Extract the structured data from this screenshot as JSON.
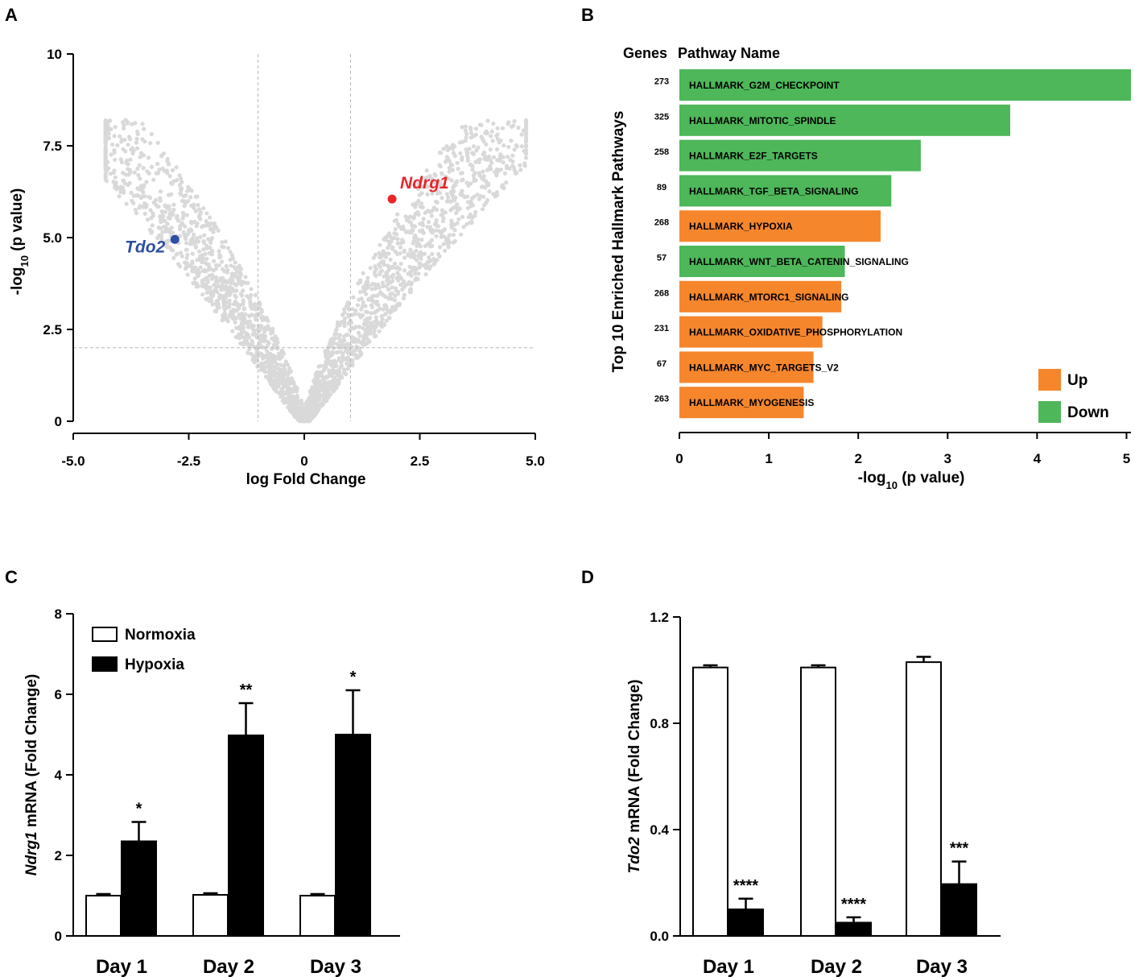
{
  "chart_data": [
    {
      "panel": "A",
      "type": "scatter",
      "title": "",
      "xlabel": "log Fold Change",
      "ylabel_parts": [
        "-log",
        "10",
        " (p value)"
      ],
      "xlim": [
        -5.0,
        5.0
      ],
      "ylim": [
        0,
        10
      ],
      "xticks": [
        "-5.0",
        "-2.5",
        "0",
        "2.5",
        "5.0"
      ],
      "yticks": [
        "0",
        "2.5",
        "5.0",
        "7.5",
        "10"
      ],
      "thresholds": {
        "x": [
          -1,
          1
        ],
        "y": 2
      },
      "background_color": "#d9d9d9",
      "highlights": [
        {
          "gene": "Tdo2",
          "x": -2.8,
          "y": 4.95,
          "color": "#2c4fa3"
        },
        {
          "gene": "Ndrg1",
          "x": 1.9,
          "y": 6.05,
          "color": "#e8262a"
        }
      ]
    },
    {
      "panel": "B",
      "type": "bar",
      "orientation": "horizontal",
      "header_genes": "Genes",
      "header_pathway": "Pathway Name",
      "ylabel": "Top 10 Enriched Hallmark Pathways",
      "xlabel_parts": [
        "-log",
        "10",
        " (p value)"
      ],
      "xlim": [
        0,
        5.05
      ],
      "xticks": [
        "0",
        "1",
        "2",
        "3",
        "4",
        "5"
      ],
      "colors": {
        "Up": "#f6862c",
        "Down": "#4db759"
      },
      "legend": [
        {
          "label": "Up",
          "key": "Up"
        },
        {
          "label": "Down",
          "key": "Down"
        }
      ],
      "bars": [
        {
          "genes": "273",
          "pathway": "HALLMARK_G2M_CHECKPOINT",
          "value": 5.05,
          "direction": "Down"
        },
        {
          "genes": "325",
          "pathway": "HALLMARK_MITOTIC_SPINDLE",
          "value": 3.7,
          "direction": "Down"
        },
        {
          "genes": "258",
          "pathway": "HALLMARK_E2F_TARGETS",
          "value": 2.7,
          "direction": "Down"
        },
        {
          "genes": "89",
          "pathway": "HALLMARK_TGF_BETA_SIGNALING",
          "value": 2.37,
          "direction": "Down"
        },
        {
          "genes": "268",
          "pathway": "HALLMARK_HYPOXIA",
          "value": 2.25,
          "direction": "Up"
        },
        {
          "genes": "57",
          "pathway": "HALLMARK_WNT_BETA_CATENIN_SIGNALING",
          "value": 1.85,
          "direction": "Down"
        },
        {
          "genes": "268",
          "pathway": "HALLMARK_MTORC1_SIGNALING",
          "value": 1.81,
          "direction": "Up"
        },
        {
          "genes": "231",
          "pathway": "HALLMARK_OXIDATIVE_PHOSPHORYLATION",
          "value": 1.6,
          "direction": "Up"
        },
        {
          "genes": "67",
          "pathway": "HALLMARK_MYC_TARGETS_V2",
          "value": 1.5,
          "direction": "Up"
        },
        {
          "genes": "263",
          "pathway": "HALLMARK_MYOGENESIS",
          "value": 1.39,
          "direction": "Up"
        }
      ]
    },
    {
      "panel": "C",
      "type": "bar",
      "ylabel_italic": "Ndrg1",
      "ylabel_rest": " mRNA (Fold Change)",
      "ylim": [
        0,
        8
      ],
      "yticks": [
        "0",
        "2",
        "4",
        "6",
        "8"
      ],
      "categories": [
        "Day 1",
        "Day 2",
        "Day 3"
      ],
      "legend": [
        "Normoxia",
        "Hypoxia"
      ],
      "series": [
        {
          "name": "Normoxia",
          "values": [
            1.0,
            1.02,
            1.0
          ],
          "errors": [
            0.04,
            0.04,
            0.04
          ],
          "sig": [
            "",
            "",
            ""
          ]
        },
        {
          "name": "Hypoxia",
          "values": [
            2.35,
            4.98,
            5.0
          ],
          "errors": [
            0.48,
            0.8,
            1.1
          ],
          "sig": [
            "*",
            "**",
            "*"
          ]
        }
      ]
    },
    {
      "panel": "D",
      "type": "bar",
      "ylabel_italic": "Tdo2",
      "ylabel_rest": " mRNA (Fold Change)",
      "ylim": [
        0,
        1.2
      ],
      "yticks": [
        "0.0",
        "0.4",
        "0.8",
        "1.2"
      ],
      "categories": [
        "Day 1",
        "Day 2",
        "Day 3"
      ],
      "legend": [],
      "series": [
        {
          "name": "Normoxia",
          "values": [
            1.01,
            1.01,
            1.03
          ],
          "errors": [
            0.008,
            0.008,
            0.02
          ],
          "sig": [
            "",
            "",
            ""
          ]
        },
        {
          "name": "Hypoxia",
          "values": [
            0.1,
            0.05,
            0.195
          ],
          "errors": [
            0.04,
            0.02,
            0.085
          ],
          "sig": [
            "****",
            "****",
            "***"
          ]
        }
      ]
    }
  ]
}
